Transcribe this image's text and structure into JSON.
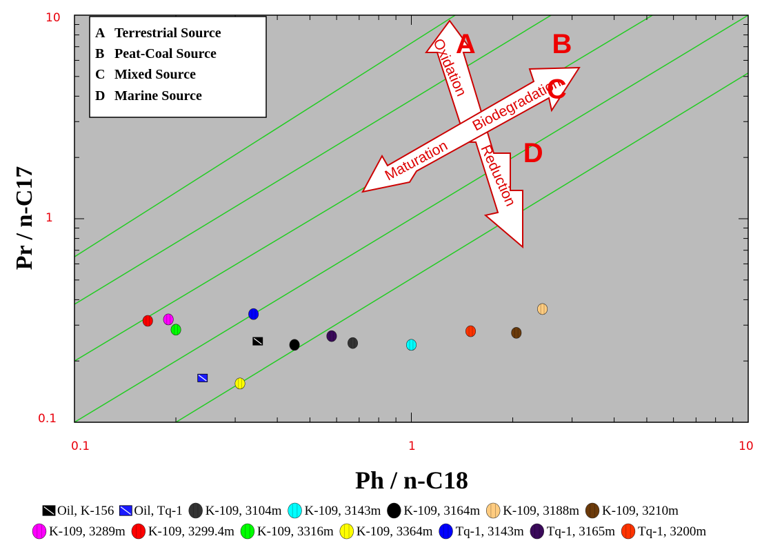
{
  "chart_data": {
    "type": "scatter",
    "x_scale": "log",
    "y_scale": "log",
    "xlim": [
      0.1,
      10
    ],
    "ylim": [
      0.1,
      10
    ],
    "xlabel": "Ph / n-C18",
    "ylabel": "Pr / n-C17",
    "x_ticks": [
      "0.1",
      "1",
      "10"
    ],
    "y_ticks": [
      "0.1",
      "1",
      "10"
    ],
    "background": "#bbbbbb",
    "boundary_lines": [
      {
        "x": [
          0.1,
          1.35
        ],
        "y": [
          0.65,
          10
        ]
      },
      {
        "x": [
          0.1,
          2.6
        ],
        "y": [
          0.38,
          10
        ]
      },
      {
        "x": [
          0.1,
          5.2
        ],
        "y": [
          0.2,
          10
        ]
      },
      {
        "x": [
          0.1,
          10
        ],
        "y": [
          0.1,
          10
        ]
      },
      {
        "x": [
          0.2,
          10
        ],
        "y": [
          0.1,
          5.2
        ]
      }
    ],
    "zones": [
      {
        "letter": "A",
        "x": 1.45,
        "y": 6.5
      },
      {
        "letter": "B",
        "x": 2.8,
        "y": 6.5
      },
      {
        "letter": "C",
        "x": 2.7,
        "y": 3.9
      },
      {
        "letter": "D",
        "x": 2.3,
        "y": 1.9
      }
    ],
    "source_legend": [
      {
        "key": "A",
        "label": "Terrestrial Source"
      },
      {
        "key": "B",
        "label": "Peat-Coal Source"
      },
      {
        "key": "C",
        "label": "Mixed Source"
      },
      {
        "key": "D",
        "label": "Marine Source"
      }
    ],
    "arrows": [
      {
        "label": "Oxidation",
        "direction": "up"
      },
      {
        "label": "Reduction",
        "direction": "down"
      },
      {
        "label": "Biodegradation",
        "direction": "up-right"
      },
      {
        "label": "Maturation",
        "direction": "down-left"
      }
    ],
    "series": [
      {
        "name": "Oil, K-156",
        "marker": "square",
        "color": "#000000",
        "x": 0.35,
        "y": 0.25
      },
      {
        "name": "Oil, Tq-1",
        "marker": "square",
        "color": "#1a1aff",
        "x": 0.24,
        "y": 0.165
      },
      {
        "name": "K-109, 3104m",
        "marker": "circle",
        "color": "#333333",
        "x": 0.67,
        "y": 0.245
      },
      {
        "name": "K-109, 3143m",
        "marker": "circle",
        "color": "#00ffff",
        "x": 1.0,
        "y": 0.24
      },
      {
        "name": "K-109, 3164m",
        "marker": "circle",
        "color": "#000000",
        "x": 0.45,
        "y": 0.24
      },
      {
        "name": "K-109, 3188m",
        "marker": "circle",
        "color": "#ffcc80",
        "x": 2.45,
        "y": 0.36
      },
      {
        "name": "K-109, 3210m",
        "marker": "circle",
        "color": "#6b3a0a",
        "x": 2.05,
        "y": 0.275
      },
      {
        "name": "K-109, 3289m",
        "marker": "circle",
        "color": "#ff00ff",
        "x": 0.19,
        "y": 0.32
      },
      {
        "name": "K-109, 3299.4m",
        "marker": "circle",
        "color": "#ff0000",
        "x": 0.165,
        "y": 0.315
      },
      {
        "name": "K-109, 3316m",
        "marker": "circle",
        "color": "#00ff00",
        "x": 0.2,
        "y": 0.285
      },
      {
        "name": "K-109, 3364m",
        "marker": "circle",
        "color": "#ffff00",
        "x": 0.31,
        "y": 0.155
      },
      {
        "name": "Tq-1, 3143m",
        "marker": "circle",
        "color": "#0000ff",
        "x": 0.34,
        "y": 0.34
      },
      {
        "name": "Tq-1, 3165m",
        "marker": "circle",
        "color": "#3a0a5a",
        "x": 0.58,
        "y": 0.265
      },
      {
        "name": "Tq-1, 3200m",
        "marker": "circle",
        "color": "#ff3300",
        "x": 1.5,
        "y": 0.28
      }
    ]
  },
  "legend_rows": [
    [
      "Oil, K-156",
      "Oil, Tq-1",
      "K-109, 3104m",
      "K-109, 3143m",
      "K-109, 3164m",
      "K-109, 3188m",
      "K-109, 3210m"
    ],
    [
      "K-109, 3289m",
      "K-109, 3299.4m",
      "K-109, 3316m",
      "K-109, 3364m",
      "Tq-1, 3143m",
      "Tq-1, 3165m",
      "Tq-1, 3200m"
    ]
  ]
}
